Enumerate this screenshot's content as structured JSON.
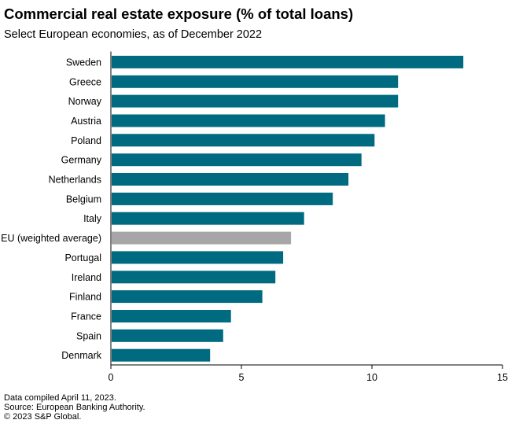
{
  "chart_data": {
    "type": "bar",
    "orientation": "horizontal",
    "title": "Commercial real estate exposure (% of total loans)",
    "subtitle": "Select European economies, as of December 2022",
    "categories": [
      "Sweden",
      "Greece",
      "Norway",
      "Austria",
      "Poland",
      "Germany",
      "Netherlands",
      "Belgium",
      "Italy",
      "EU (weighted average)",
      "Portugal",
      "Ireland",
      "Finland",
      "France",
      "Spain",
      "Denmark"
    ],
    "values": [
      13.5,
      11.0,
      11.0,
      10.5,
      10.1,
      9.6,
      9.1,
      8.5,
      7.4,
      6.9,
      6.6,
      6.3,
      5.8,
      4.6,
      4.3,
      3.8
    ],
    "highlight": "EU (weighted average)",
    "colors": {
      "bar": "#006a80",
      "highlight": "#a6a6a6",
      "axis": "#000000"
    },
    "xlim": [
      0,
      15
    ],
    "xticks": [
      0,
      5,
      10,
      15
    ],
    "xlabel": "",
    "ylabel": "",
    "grid": false
  },
  "footer": {
    "line1": "Data compiled April 11, 2023.",
    "line2": "Source: European Banking Authority.",
    "line3": "© 2023 S&P Global."
  }
}
